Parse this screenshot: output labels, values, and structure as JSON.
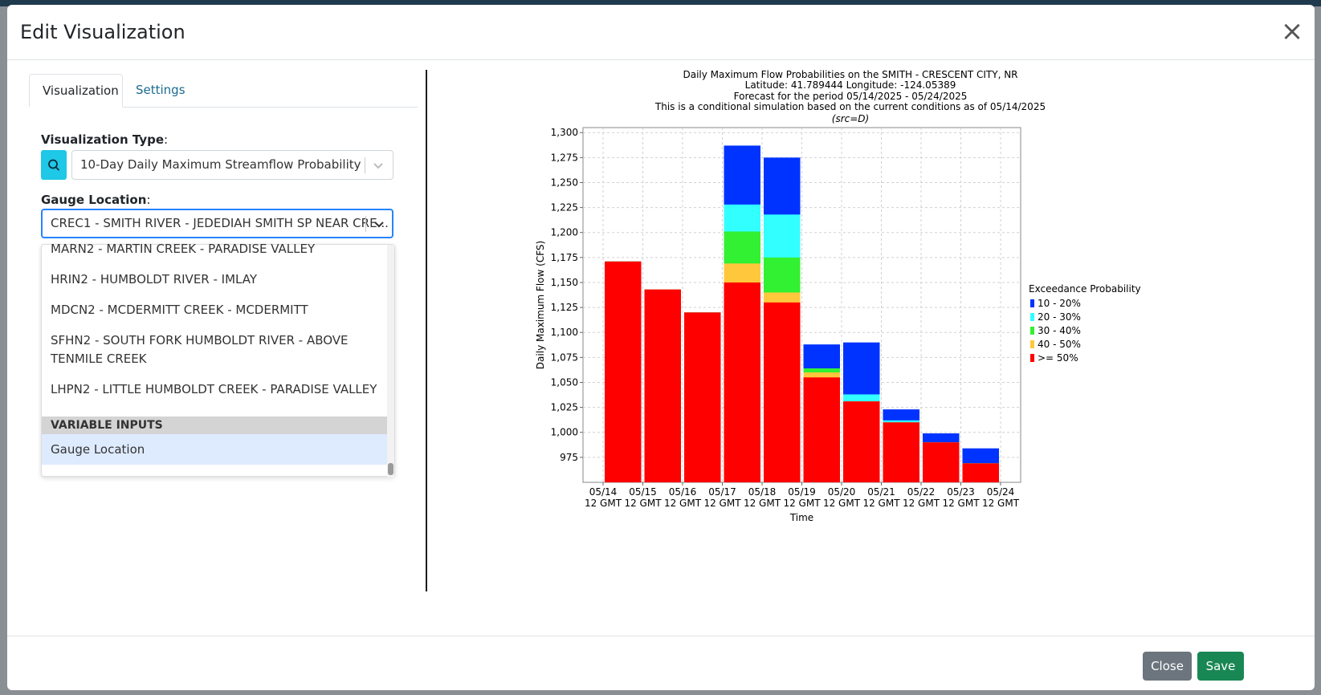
{
  "modal": {
    "title": "Edit Visualization",
    "close_glyph": "×"
  },
  "tabs": [
    {
      "label": "Visualization",
      "active": true
    },
    {
      "label": "Settings",
      "active": false
    }
  ],
  "form": {
    "viz_type_label": "Visualization Type",
    "viz_type_value": "10-Day Daily Maximum Streamflow Probability",
    "gauge_label": "Gauge Location",
    "gauge_value": "CREC1 - SMITH RIVER - JEDEDIAH SMITH SP NEAR CRE..."
  },
  "dropdown": {
    "items": [
      "MARN2 - MARTIN CREEK - PARADISE VALLEY",
      "HRIN2 - HUMBOLDT RIVER - IMLAY",
      "MDCN2 - MCDERMITT CREEK - MCDERMITT",
      "SFHN2 - SOUTH FORK HUMBOLDT RIVER - ABOVE TENMILE CREEK",
      "LHPN2 - LITTLE HUMBOLDT CREEK - PARADISE VALLEY"
    ],
    "group_header": "VARIABLE INPUTS",
    "selected_item": "Gauge Location"
  },
  "footer": {
    "close_label": "Close",
    "save_label": "Save"
  },
  "chart_data": {
    "type": "bar",
    "title_lines": [
      "Daily Maximum Flow Probabilities on the SMITH - CRESCENT CITY, NR",
      "Latitude: 41.789444 Longitude: -124.05389",
      "Forecast for the period 05/14/2025 - 05/24/2025",
      "This is a conditional simulation based on the current conditions as of 05/14/2025"
    ],
    "subtitle": "(src=D)",
    "xlabel": "Time",
    "ylabel": "Daily Maximum Flow (CFS)",
    "ylim": [
      950,
      1305
    ],
    "yticks": [
      975,
      1000,
      1025,
      1050,
      1075,
      1100,
      1125,
      1150,
      1175,
      1200,
      1225,
      1250,
      1275,
      1300
    ],
    "ytick_labels": [
      "975",
      "1,000",
      "1,025",
      "1,050",
      "1,075",
      "1,100",
      "1,125",
      "1,150",
      "1,175",
      "1,200",
      "1,225",
      "1,250",
      "1,275",
      "1,300"
    ],
    "x_tick_dates": [
      "05/14",
      "05/15",
      "05/16",
      "05/17",
      "05/18",
      "05/19",
      "05/20",
      "05/21",
      "05/22",
      "05/23",
      "05/24"
    ],
    "x_tick_time": "12 GMT",
    "legend_title": "Exceedance Probability",
    "legend_position": "right",
    "grid": true,
    "categories": [
      "05/14",
      "05/15",
      "05/16",
      "05/17",
      "05/18",
      "05/19",
      "05/20",
      "05/21",
      "05/22",
      "05/23"
    ],
    "series": [
      {
        "name": ">= 50%",
        "color": "#ff0000",
        "values": [
          1171,
          1143,
          1120,
          1150,
          1130,
          1055,
          1031,
          1010,
          990,
          969
        ]
      },
      {
        "name": "40 - 50%",
        "color": "#ffc83c",
        "values": [
          1171,
          1143,
          1120,
          1169,
          1140,
          1060,
          1031,
          1010,
          990,
          969
        ]
      },
      {
        "name": "30 - 40%",
        "color": "#32f032",
        "values": [
          1171,
          1143,
          1120,
          1201,
          1175,
          1064,
          1031,
          1010,
          990,
          969
        ]
      },
      {
        "name": "20 - 30%",
        "color": "#32ffff",
        "values": [
          1171,
          1143,
          1120,
          1228,
          1218,
          1064,
          1038,
          1012,
          990,
          969
        ]
      },
      {
        "name": "10 - 20%",
        "color": "#0033ff",
        "values": [
          1171,
          1143,
          1120,
          1287,
          1275,
          1088,
          1090,
          1023,
          999,
          984
        ]
      }
    ]
  }
}
